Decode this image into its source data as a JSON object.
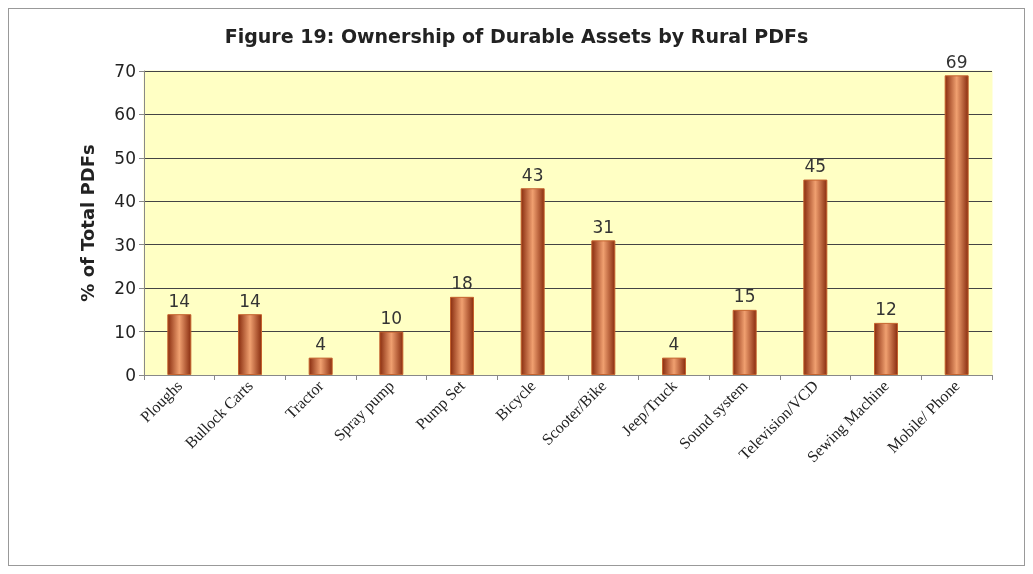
{
  "chart_data": {
    "type": "bar",
    "title": "Figure 19: Ownership of Durable Assets by Rural PDFs",
    "ylabel": "% of Total PDFs",
    "categories": [
      "Ploughs",
      "Bullock Carts",
      "Tractor",
      "Spray pump",
      "Pump Set",
      "Bicycle",
      "Scooter/Bike",
      "Jeep/Truck",
      "Sound system",
      "Television/VCD",
      "Sewing Machine",
      "Mobile/ Phone"
    ],
    "values": [
      14,
      14,
      4,
      10,
      18,
      43,
      31,
      4,
      15,
      45,
      12,
      69
    ],
    "color": "#c4622d",
    "ylim": [
      0,
      70
    ],
    "yticks": [
      0,
      10,
      20,
      30,
      40,
      50,
      60,
      70
    ],
    "grid": "y",
    "data_labels": true
  }
}
